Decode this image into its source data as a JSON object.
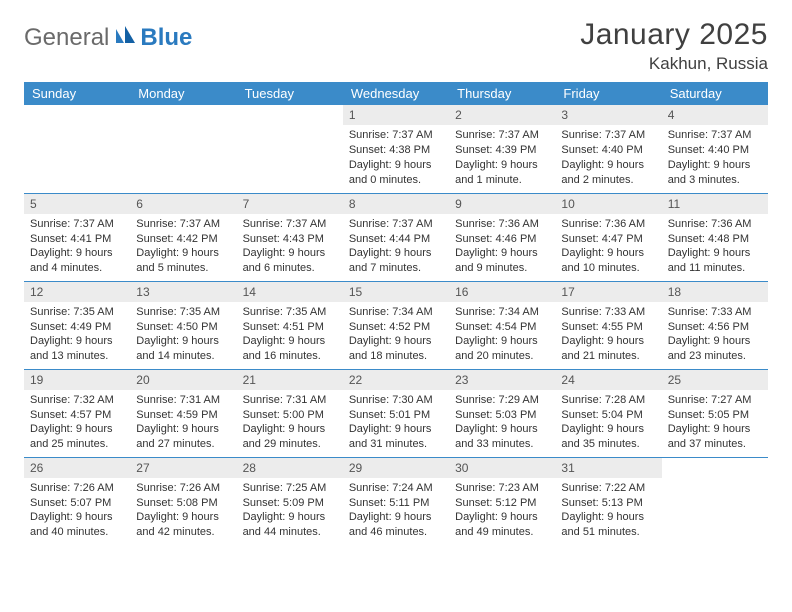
{
  "logo": {
    "text1": "General",
    "text2": "Blue"
  },
  "title": "January 2025",
  "location": "Kakhun, Russia",
  "colors": {
    "header_bg": "#3b8bc9",
    "header_text": "#ffffff",
    "daynum_bg": "#ececec",
    "border": "#3b8bc9",
    "body_text": "#333333"
  },
  "weekdays": [
    "Sunday",
    "Monday",
    "Tuesday",
    "Wednesday",
    "Thursday",
    "Friday",
    "Saturday"
  ],
  "weeks": [
    [
      null,
      null,
      null,
      {
        "n": "1",
        "sunrise": "7:37 AM",
        "sunset": "4:38 PM",
        "day_a": "Daylight: 9 hours",
        "day_b": "and 0 minutes."
      },
      {
        "n": "2",
        "sunrise": "7:37 AM",
        "sunset": "4:39 PM",
        "day_a": "Daylight: 9 hours",
        "day_b": "and 1 minute."
      },
      {
        "n": "3",
        "sunrise": "7:37 AM",
        "sunset": "4:40 PM",
        "day_a": "Daylight: 9 hours",
        "day_b": "and 2 minutes."
      },
      {
        "n": "4",
        "sunrise": "7:37 AM",
        "sunset": "4:40 PM",
        "day_a": "Daylight: 9 hours",
        "day_b": "and 3 minutes."
      }
    ],
    [
      {
        "n": "5",
        "sunrise": "7:37 AM",
        "sunset": "4:41 PM",
        "day_a": "Daylight: 9 hours",
        "day_b": "and 4 minutes."
      },
      {
        "n": "6",
        "sunrise": "7:37 AM",
        "sunset": "4:42 PM",
        "day_a": "Daylight: 9 hours",
        "day_b": "and 5 minutes."
      },
      {
        "n": "7",
        "sunrise": "7:37 AM",
        "sunset": "4:43 PM",
        "day_a": "Daylight: 9 hours",
        "day_b": "and 6 minutes."
      },
      {
        "n": "8",
        "sunrise": "7:37 AM",
        "sunset": "4:44 PM",
        "day_a": "Daylight: 9 hours",
        "day_b": "and 7 minutes."
      },
      {
        "n": "9",
        "sunrise": "7:36 AM",
        "sunset": "4:46 PM",
        "day_a": "Daylight: 9 hours",
        "day_b": "and 9 minutes."
      },
      {
        "n": "10",
        "sunrise": "7:36 AM",
        "sunset": "4:47 PM",
        "day_a": "Daylight: 9 hours",
        "day_b": "and 10 minutes."
      },
      {
        "n": "11",
        "sunrise": "7:36 AM",
        "sunset": "4:48 PM",
        "day_a": "Daylight: 9 hours",
        "day_b": "and 11 minutes."
      }
    ],
    [
      {
        "n": "12",
        "sunrise": "7:35 AM",
        "sunset": "4:49 PM",
        "day_a": "Daylight: 9 hours",
        "day_b": "and 13 minutes."
      },
      {
        "n": "13",
        "sunrise": "7:35 AM",
        "sunset": "4:50 PM",
        "day_a": "Daylight: 9 hours",
        "day_b": "and 14 minutes."
      },
      {
        "n": "14",
        "sunrise": "7:35 AM",
        "sunset": "4:51 PM",
        "day_a": "Daylight: 9 hours",
        "day_b": "and 16 minutes."
      },
      {
        "n": "15",
        "sunrise": "7:34 AM",
        "sunset": "4:52 PM",
        "day_a": "Daylight: 9 hours",
        "day_b": "and 18 minutes."
      },
      {
        "n": "16",
        "sunrise": "7:34 AM",
        "sunset": "4:54 PM",
        "day_a": "Daylight: 9 hours",
        "day_b": "and 20 minutes."
      },
      {
        "n": "17",
        "sunrise": "7:33 AM",
        "sunset": "4:55 PM",
        "day_a": "Daylight: 9 hours",
        "day_b": "and 21 minutes."
      },
      {
        "n": "18",
        "sunrise": "7:33 AM",
        "sunset": "4:56 PM",
        "day_a": "Daylight: 9 hours",
        "day_b": "and 23 minutes."
      }
    ],
    [
      {
        "n": "19",
        "sunrise": "7:32 AM",
        "sunset": "4:57 PM",
        "day_a": "Daylight: 9 hours",
        "day_b": "and 25 minutes."
      },
      {
        "n": "20",
        "sunrise": "7:31 AM",
        "sunset": "4:59 PM",
        "day_a": "Daylight: 9 hours",
        "day_b": "and 27 minutes."
      },
      {
        "n": "21",
        "sunrise": "7:31 AM",
        "sunset": "5:00 PM",
        "day_a": "Daylight: 9 hours",
        "day_b": "and 29 minutes."
      },
      {
        "n": "22",
        "sunrise": "7:30 AM",
        "sunset": "5:01 PM",
        "day_a": "Daylight: 9 hours",
        "day_b": "and 31 minutes."
      },
      {
        "n": "23",
        "sunrise": "7:29 AM",
        "sunset": "5:03 PM",
        "day_a": "Daylight: 9 hours",
        "day_b": "and 33 minutes."
      },
      {
        "n": "24",
        "sunrise": "7:28 AM",
        "sunset": "5:04 PM",
        "day_a": "Daylight: 9 hours",
        "day_b": "and 35 minutes."
      },
      {
        "n": "25",
        "sunrise": "7:27 AM",
        "sunset": "5:05 PM",
        "day_a": "Daylight: 9 hours",
        "day_b": "and 37 minutes."
      }
    ],
    [
      {
        "n": "26",
        "sunrise": "7:26 AM",
        "sunset": "5:07 PM",
        "day_a": "Daylight: 9 hours",
        "day_b": "and 40 minutes."
      },
      {
        "n": "27",
        "sunrise": "7:26 AM",
        "sunset": "5:08 PM",
        "day_a": "Daylight: 9 hours",
        "day_b": "and 42 minutes."
      },
      {
        "n": "28",
        "sunrise": "7:25 AM",
        "sunset": "5:09 PM",
        "day_a": "Daylight: 9 hours",
        "day_b": "and 44 minutes."
      },
      {
        "n": "29",
        "sunrise": "7:24 AM",
        "sunset": "5:11 PM",
        "day_a": "Daylight: 9 hours",
        "day_b": "and 46 minutes."
      },
      {
        "n": "30",
        "sunrise": "7:23 AM",
        "sunset": "5:12 PM",
        "day_a": "Daylight: 9 hours",
        "day_b": "and 49 minutes."
      },
      {
        "n": "31",
        "sunrise": "7:22 AM",
        "sunset": "5:13 PM",
        "day_a": "Daylight: 9 hours",
        "day_b": "and 51 minutes."
      },
      null
    ]
  ],
  "labels": {
    "sunrise": "Sunrise: ",
    "sunset": "Sunset: "
  }
}
